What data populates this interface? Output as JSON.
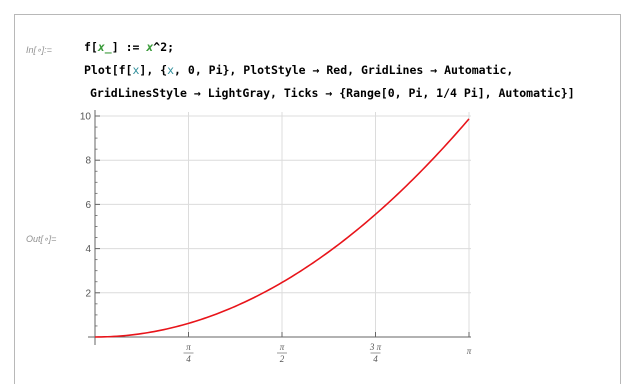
{
  "cell": {
    "in_label": "In[∘]:=",
    "out_label": "Out[∘]=",
    "line1": {
      "prefix": "f[",
      "var": "x_",
      "mid": "] := ",
      "var2": "x",
      "suffix": "^2;"
    },
    "line2": {
      "a": "Plot[f[",
      "var": "x",
      "b": "], {",
      "var2": "x",
      "c": ", 0, Pi}, PlotStyle → Red, GridLines → Automatic,"
    },
    "line3": "GridLinesStyle → LightGray, Ticks → {Range[0, Pi, 1/4 Pi], Automatic}]"
  },
  "colors": {
    "curve": "#e8141a",
    "grid": "#dcdcdc",
    "axis": "#666666"
  },
  "chart_data": {
    "type": "line",
    "function": "x^2",
    "series": [
      {
        "x": [
          0,
          0.3927,
          0.7854,
          1.1781,
          1.5708,
          1.9635,
          2.3562,
          2.7489,
          3.1416
        ],
        "values": [
          0,
          0.1542,
          0.6169,
          1.3879,
          2.4674,
          3.8553,
          5.5517,
          7.5564,
          9.8696
        ]
      }
    ],
    "x_ticks": [
      {
        "num": "π",
        "den": "4"
      },
      {
        "num": "π",
        "den": "2"
      },
      {
        "num": "3 π",
        "den": "4"
      },
      {
        "num": "π",
        "den": ""
      }
    ],
    "y_ticks": [
      "2",
      "4",
      "6",
      "8",
      "10"
    ],
    "xlim": [
      0,
      3.1416
    ],
    "ylim": [
      -0.5,
      10
    ],
    "grid": true
  }
}
